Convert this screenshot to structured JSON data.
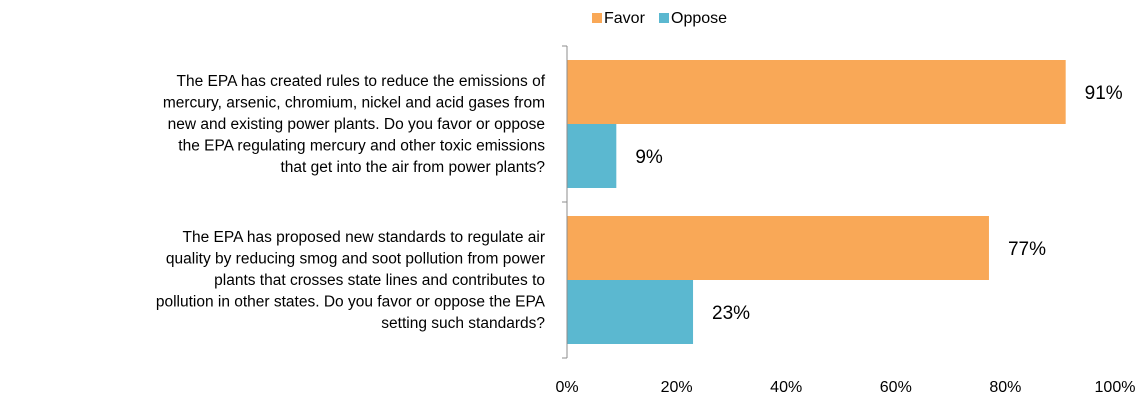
{
  "chart_data": {
    "type": "bar",
    "orientation": "horizontal",
    "categories": [
      [
        "The EPA has created rules to reduce the emissions of",
        "mercury, arsenic, chromium, nickel and acid gases from",
        "new and existing power plants. Do you favor or oppose",
        "the EPA regulating mercury and other toxic emissions",
        "that get into the air from power plants?"
      ],
      [
        "The EPA has proposed new standards to regulate air",
        "quality by reducing smog and soot pollution from power",
        "plants that crosses state lines and contributes to",
        "pollution in other states. Do you favor or oppose the EPA",
        "setting such standards?"
      ]
    ],
    "series": [
      {
        "name": "Favor",
        "color": "#F9A857",
        "values": [
          91,
          77
        ],
        "labels": [
          "91%",
          "77%"
        ]
      },
      {
        "name": "Oppose",
        "color": "#5BB8D0",
        "values": [
          9,
          23
        ],
        "labels": [
          "9%",
          "23%"
        ]
      }
    ],
    "xlim": [
      0,
      100
    ],
    "ticks": [
      "0%",
      "20%",
      "40%",
      "60%",
      "80%",
      "100%"
    ],
    "grid": false,
    "legend_position": "top"
  }
}
